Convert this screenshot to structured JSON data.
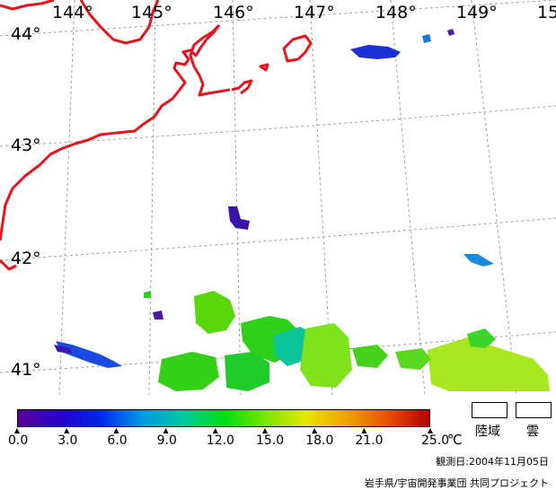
{
  "map": {
    "longitude_labels": [
      "144°",
      "145°",
      "146°",
      "147°",
      "148°",
      "149°",
      "15"
    ],
    "latitude_labels": [
      "44°",
      "43°",
      "42°",
      "41°"
    ],
    "coastline_color": "#e8141c",
    "grid_color": "#a0a0a0"
  },
  "colorbar": {
    "ticks": [
      "0.0",
      "3.0",
      "6.0",
      "9.0",
      "12.0",
      "15.0",
      "18.0",
      "21.0",
      "25.0"
    ],
    "unit": "℃",
    "min": 0.0,
    "max": 25.0,
    "colors": [
      "#5a0096",
      "#2800c8",
      "#0028e6",
      "#0096e6",
      "#00c8a0",
      "#00dc14",
      "#78e600",
      "#e6e600",
      "#f0a000",
      "#e65000",
      "#b40000"
    ]
  },
  "legend": {
    "land_label": "陸域",
    "cloud_label": "雲"
  },
  "footer": {
    "observation_date": "観測日:2004年11月05日",
    "credit": "岩手県/宇宙開発事業団 共同プロジェクト"
  }
}
